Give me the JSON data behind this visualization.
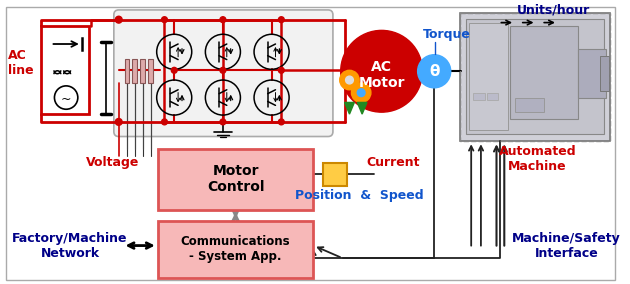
{
  "bg": "#ffffff",
  "red": "#cc0000",
  "blue": "#1155cc",
  "dark_blue": "#000088",
  "pink": "#f7b8b8",
  "pink_edge": "#dd5555",
  "orange": "#ff9900",
  "green": "#227722",
  "light_blue": "#44aaff",
  "gray": "#888888",
  "light_gray": "#cccccc",
  "resistor_fill": "#cc9999",
  "resistor_edge": "#885555",
  "label_ac": "AC\nline",
  "label_voltage": "Voltage",
  "label_current": "Current",
  "label_pos_speed": "Position  &  Speed",
  "label_torque": "Torque",
  "label_units": "Units/hour",
  "label_ac_motor": "AC\nMotor",
  "label_motor_ctrl": "Motor\nControl",
  "label_comms": "Communications\n- System App.",
  "label_factory": "Factory/Machine\nNetwork",
  "label_auto": "Automated\nMachine",
  "label_safety": "Machine/Safety\nInterface"
}
